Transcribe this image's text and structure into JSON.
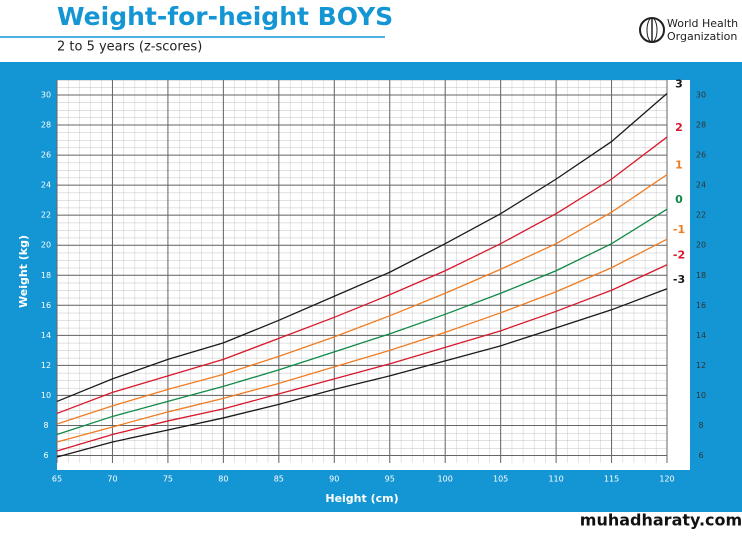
{
  "chart_data": {
    "type": "line",
    "title": "Weight-for-height BOYS",
    "subtitle": "2 to 5 years (z-scores)",
    "x_label": "Height (cm)",
    "y_label": "Weight (kg)",
    "x": [
      65,
      70,
      75,
      80,
      85,
      90,
      95,
      100,
      105,
      110,
      115,
      120
    ],
    "series": [
      {
        "name": "3",
        "color": "#1a1a1a",
        "values": [
          9.6,
          11.1,
          12.4,
          13.5,
          15.0,
          16.6,
          18.2,
          20.1,
          22.1,
          24.4,
          26.9,
          30.1
        ]
      },
      {
        "name": "2",
        "color": "#d7192c",
        "values": [
          8.8,
          10.2,
          11.3,
          12.4,
          13.8,
          15.2,
          16.7,
          18.3,
          20.1,
          22.1,
          24.4,
          27.2
        ]
      },
      {
        "name": "1",
        "color": "#f07c22",
        "values": [
          8.1,
          9.3,
          10.4,
          11.4,
          12.6,
          13.9,
          15.3,
          16.8,
          18.4,
          20.1,
          22.2,
          24.7
        ]
      },
      {
        "name": "0",
        "color": "#0f8a47",
        "values": [
          7.4,
          8.6,
          9.6,
          10.6,
          11.7,
          12.9,
          14.1,
          15.4,
          16.8,
          18.3,
          20.1,
          22.4
        ]
      },
      {
        "name": "-1",
        "color": "#f07c22",
        "values": [
          6.9,
          7.9,
          8.9,
          9.8,
          10.8,
          11.9,
          13.0,
          14.2,
          15.5,
          16.9,
          18.5,
          20.4
        ]
      },
      {
        "name": "-2",
        "color": "#d7192c",
        "values": [
          6.3,
          7.4,
          8.3,
          9.1,
          10.1,
          11.1,
          12.1,
          13.2,
          14.3,
          15.6,
          17.0,
          18.7
        ]
      },
      {
        "name": "-3",
        "color": "#1a1a1a",
        "values": [
          5.9,
          6.9,
          7.7,
          8.5,
          9.4,
          10.4,
          11.3,
          12.3,
          13.3,
          14.5,
          15.7,
          17.1
        ]
      }
    ],
    "xlim": [
      65,
      120
    ],
    "xticks": [
      65,
      70,
      75,
      80,
      85,
      90,
      95,
      100,
      105,
      110,
      115,
      120
    ],
    "ylim": [
      5.5,
      31
    ],
    "yticks": [
      6,
      8,
      10,
      12,
      14,
      16,
      18,
      20,
      22,
      24,
      26,
      28,
      30
    ],
    "grid": true
  },
  "organization": {
    "line1": "World Health",
    "line2": "Organization"
  },
  "watermark": "muhadharaty.com"
}
